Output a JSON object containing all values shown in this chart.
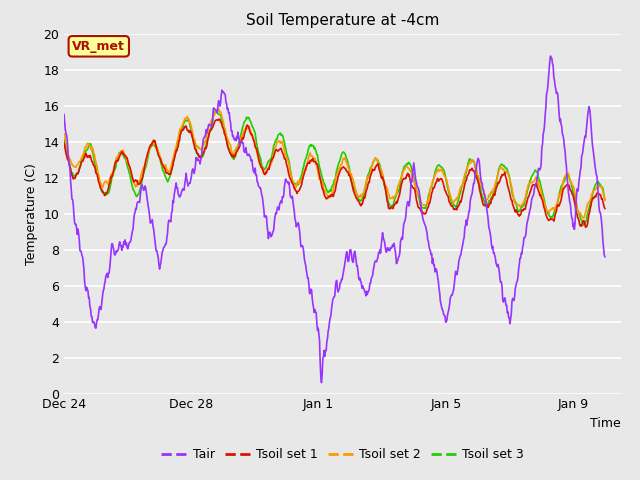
{
  "title": "Soil Temperature at -4cm",
  "xlabel": "Time",
  "ylabel": "Temperature (C)",
  "ylim": [
    0,
    20
  ],
  "yticks": [
    0,
    2,
    4,
    6,
    8,
    10,
    12,
    14,
    16,
    18,
    20
  ],
  "x_tick_positions": [
    0,
    4,
    8,
    12,
    16
  ],
  "x_tick_labels": [
    "Dec 24",
    "Dec 28",
    "Jan 1",
    "Jan 5",
    "Jan 9"
  ],
  "xlim": [
    0,
    17.5
  ],
  "background_color": "#e8e8e8",
  "grid_color": "#ffffff",
  "colors": {
    "Tair": "#9933ff",
    "Tsoil1": "#dd1100",
    "Tsoil2": "#ff9900",
    "Tsoil3": "#22cc00"
  },
  "legend_labels": [
    "Tair",
    "Tsoil set 1",
    "Tsoil set 2",
    "Tsoil set 3"
  ],
  "annotation_text": "VR_met",
  "annotation_color": "#aa1100",
  "annotation_bg": "#ffff99",
  "line_width": 1.2,
  "title_fontsize": 11,
  "axis_fontsize": 9,
  "tick_fontsize": 9
}
